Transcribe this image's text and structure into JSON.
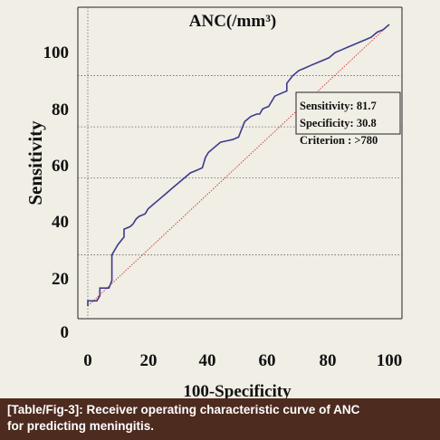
{
  "chart_data": {
    "type": "line",
    "title": "ANC(/mm³)",
    "xlabel": "100-Specificity",
    "ylabel": "Sensitivity",
    "xlim": [
      0,
      100
    ],
    "ylim": [
      0,
      110
    ],
    "xticks": [
      "0",
      "20",
      "40",
      "60",
      "80",
      "100"
    ],
    "yticks": [
      "0",
      "20",
      "40",
      "60",
      "80",
      "100"
    ],
    "grid": "dotted horizontal lines at 20, 50, 70, 90; dotted vertical line at 0",
    "series": [
      {
        "color": "#3b3b8c",
        "x": [
          0,
          0,
          3,
          4,
          4,
          7,
          8,
          8,
          10,
          12,
          12,
          14,
          15,
          16,
          17,
          19,
          20,
          22,
          24,
          26,
          28,
          30,
          32,
          34,
          36,
          38,
          39,
          40,
          42,
          44,
          46,
          48,
          50,
          52,
          54,
          56,
          57,
          58,
          60,
          62,
          64,
          66,
          66,
          68,
          70,
          72,
          74,
          76,
          78,
          80,
          82,
          84,
          86,
          88,
          90,
          92,
          94,
          96,
          98,
          100,
          100
        ],
        "y": [
          0,
          2,
          2,
          4,
          7,
          7,
          10,
          20,
          24,
          27,
          30,
          31,
          32,
          34,
          35,
          36,
          38,
          40,
          42,
          44,
          46,
          48,
          50,
          52,
          53,
          54,
          58,
          60,
          62,
          64,
          64.5,
          65,
          66,
          72,
          74,
          75,
          75,
          77,
          78,
          82,
          83,
          84,
          87,
          90,
          92,
          93,
          94,
          95,
          96,
          97,
          99,
          100,
          101,
          102,
          103,
          104,
          105,
          107,
          108,
          110,
          110
        ]
      }
    ],
    "reference_line": {
      "x": [
        0,
        100
      ],
      "y": [
        0,
        110
      ],
      "color": "#cc3333"
    },
    "annotation": {
      "sensitivity": "Sensitivity: 81.7",
      "specificity": "Specificity: 30.8",
      "criterion": "Criterion : >780"
    }
  },
  "caption": {
    "line1": "[Table/Fig-3]: Receiver operating characteristic curve of ANC",
    "line2": "for predicting meningitis."
  },
  "colors": {
    "background": "#f0eee5",
    "caption_background": "#4d2b1f",
    "curve": "#3b3b8c",
    "reference": "#cc3333"
  }
}
